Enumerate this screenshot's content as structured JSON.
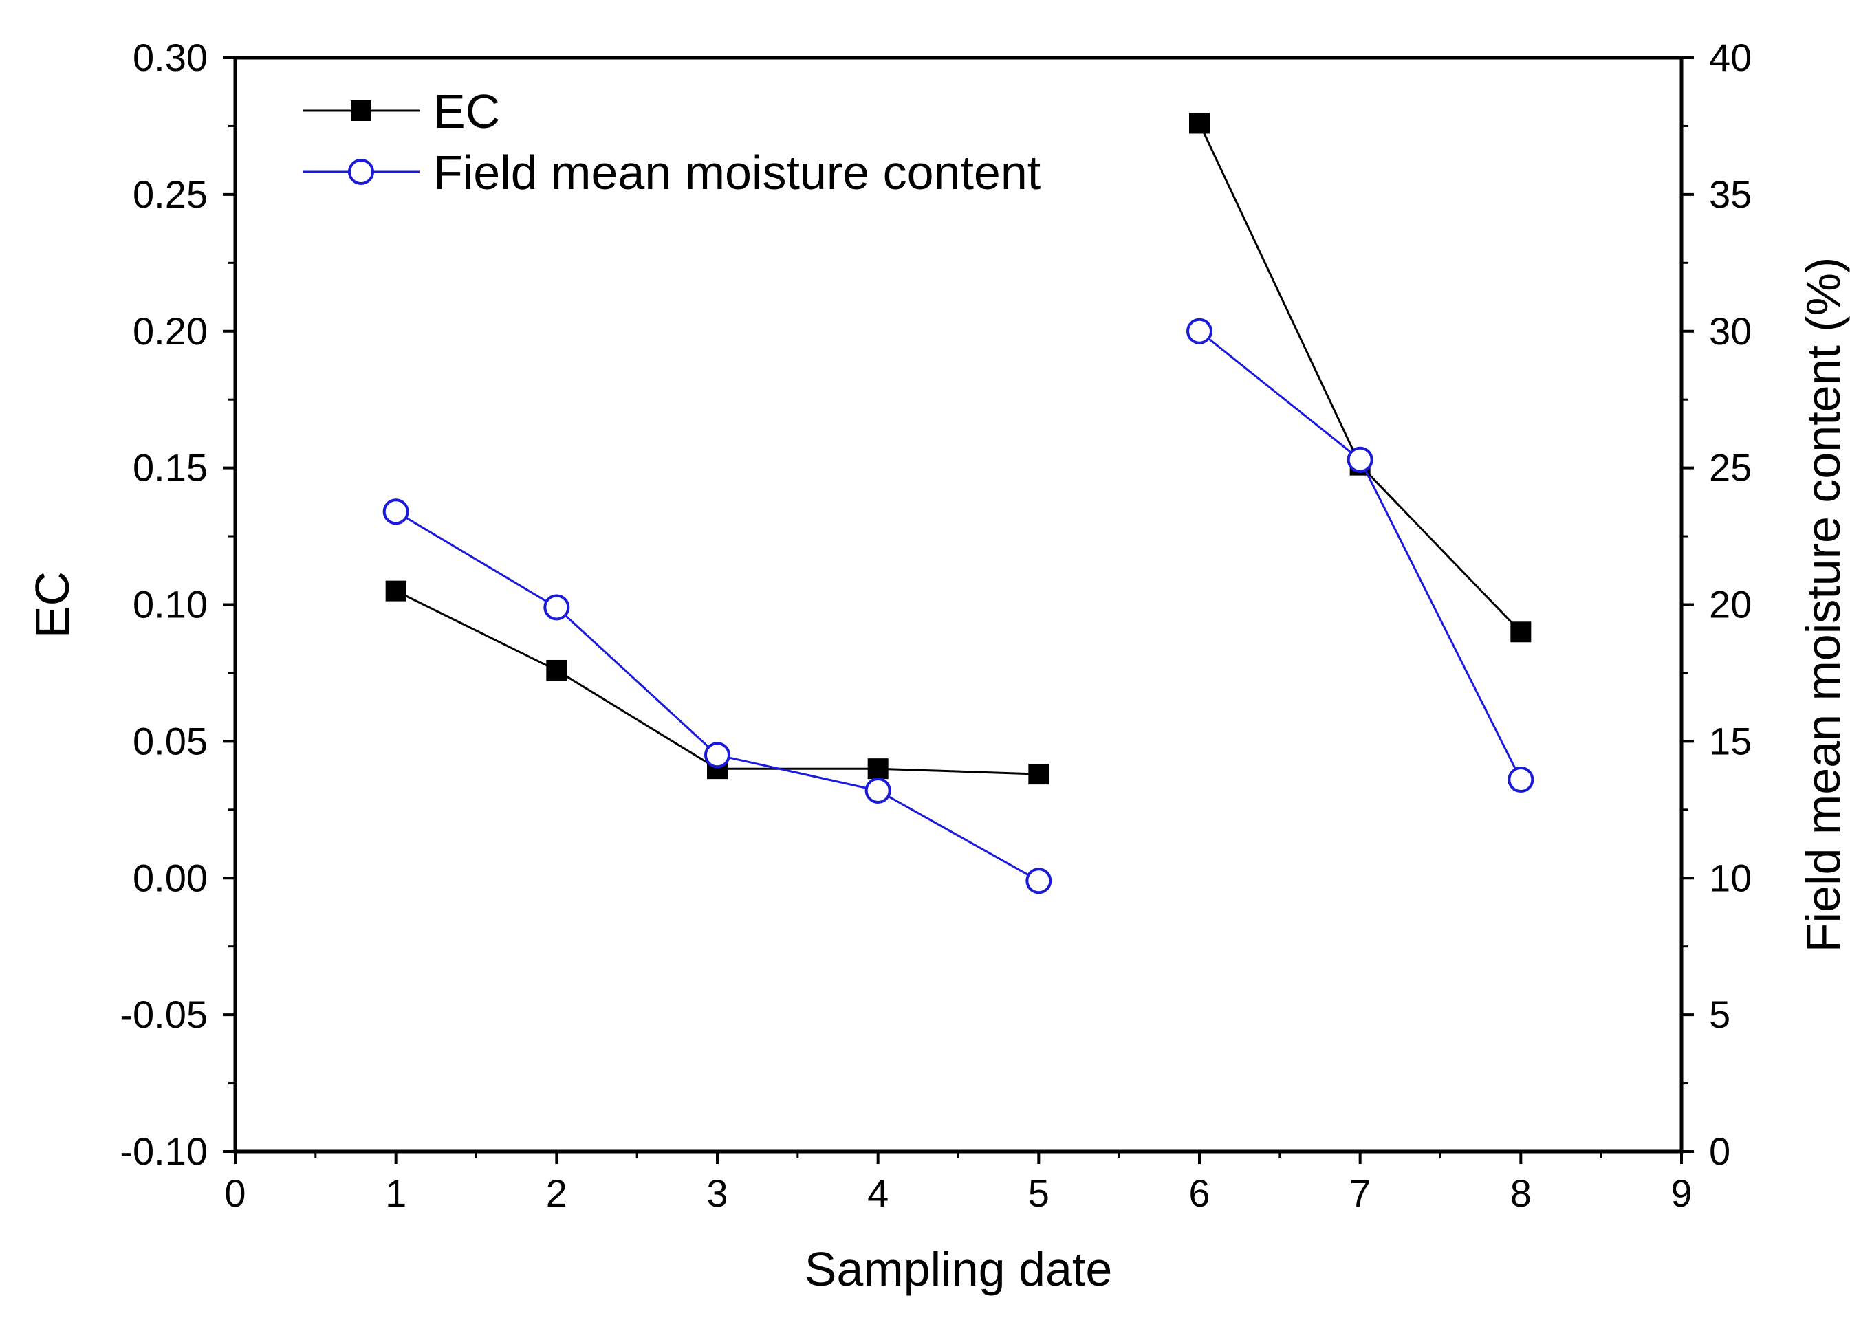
{
  "chart_data": {
    "type": "line",
    "xlabel": "Sampling date",
    "ylabel_left": "EC",
    "ylabel_right": "Field mean moisture content (%)",
    "xlim": [
      0,
      9
    ],
    "ylim_left": [
      -0.1,
      0.3
    ],
    "ylim_right": [
      0,
      40
    ],
    "x_ticks": [
      "0",
      "1",
      "2",
      "3",
      "4",
      "5",
      "6",
      "7",
      "8",
      "9"
    ],
    "y_left_ticks": [
      "-0.10",
      "-0.05",
      "0.00",
      "0.05",
      "0.10",
      "0.15",
      "0.20",
      "0.25",
      "0.30"
    ],
    "y_right_ticks": [
      "0",
      "5",
      "10",
      "15",
      "20",
      "25",
      "30",
      "35",
      "40"
    ],
    "grid": false,
    "legend_position": "top-left",
    "series": [
      {
        "name": "EC",
        "axis": "left",
        "color": "#000000",
        "marker": "filled-square",
        "segments": [
          [
            [
              1,
              0.105
            ],
            [
              2,
              0.076
            ],
            [
              3,
              0.04
            ],
            [
              4,
              0.04
            ],
            [
              5,
              0.038
            ]
          ],
          [
            [
              6,
              0.276
            ],
            [
              7,
              0.151
            ],
            [
              8,
              0.09
            ]
          ]
        ]
      },
      {
        "name": "Field mean moisture content",
        "axis": "right",
        "color": "#1a1adb",
        "marker": "open-circle",
        "segments": [
          [
            [
              1,
              23.4
            ],
            [
              2,
              19.9
            ],
            [
              3,
              14.5
            ],
            [
              4,
              13.2
            ],
            [
              5,
              9.9
            ]
          ],
          [
            [
              6,
              30.0
            ],
            [
              7,
              25.3
            ],
            [
              8,
              13.6
            ]
          ]
        ]
      }
    ]
  }
}
